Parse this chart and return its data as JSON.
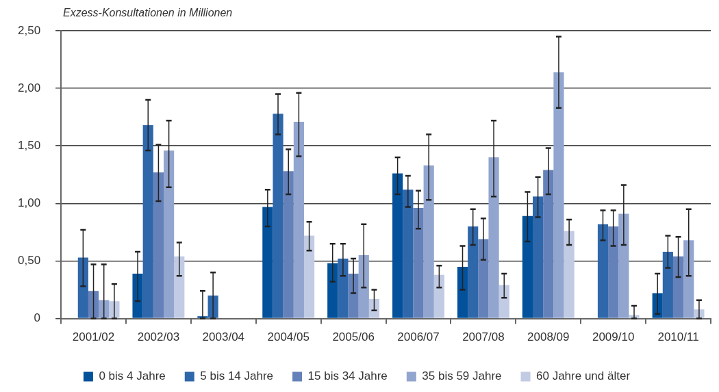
{
  "chart_data": {
    "type": "bar",
    "ylabel": "Exzess-Konsultationen in Millionen",
    "categories": [
      "2001/02",
      "2002/03",
      "2003/04",
      "2004/05",
      "2005/06",
      "2006/07",
      "2007/08",
      "2008/09",
      "2009/10",
      "2010/11"
    ],
    "series": [
      {
        "name": "0 bis 4 Jahre",
        "color": "#03519b",
        "values": [
          null,
          0.39,
          0.02,
          0.97,
          0.48,
          1.26,
          0.45,
          0.89,
          null,
          0.22
        ],
        "errors": [
          null,
          [
            0.15,
            0.58
          ],
          [
            0,
            0.24
          ],
          [
            0.8,
            1.12
          ],
          [
            0.32,
            0.65
          ],
          [
            1.08,
            1.4
          ],
          [
            0.25,
            0.63
          ],
          [
            0.67,
            1.1
          ],
          null,
          [
            0.04,
            0.39
          ]
        ]
      },
      {
        "name": "5 bis 14 Jahre",
        "color": "#2f67ab",
        "values": [
          0.53,
          1.68,
          0.2,
          1.78,
          0.52,
          1.12,
          0.8,
          1.06,
          0.82,
          0.58
        ],
        "errors": [
          [
            0.28,
            0.77
          ],
          [
            1.46,
            1.9
          ],
          [
            0,
            0.4
          ],
          [
            1.6,
            1.95
          ],
          [
            0.37,
            0.65
          ],
          [
            0.97,
            1.24
          ],
          [
            0.64,
            0.95
          ],
          [
            0.88,
            1.23
          ],
          [
            0.68,
            0.94
          ],
          [
            0.44,
            0.72
          ]
        ]
      },
      {
        "name": "15 bis 34 Jahre",
        "color": "#6581b9",
        "values": [
          0.24,
          1.27,
          null,
          1.28,
          0.39,
          0.96,
          0.69,
          1.29,
          0.8,
          0.54
        ],
        "errors": [
          [
            0,
            0.47
          ],
          [
            1.02,
            1.51
          ],
          null,
          [
            1.08,
            1.47
          ],
          [
            0.22,
            0.52
          ],
          [
            0.78,
            1.11
          ],
          [
            0.51,
            0.87
          ],
          [
            1.08,
            1.48
          ],
          [
            0.63,
            0.94
          ],
          [
            0.36,
            0.71
          ]
        ]
      },
      {
        "name": "35 bis 59 Jahre",
        "color": "#91a5cf",
        "values": [
          0.16,
          1.46,
          null,
          1.71,
          0.55,
          1.33,
          1.4,
          2.14,
          0.91,
          0.68
        ],
        "errors": [
          [
            0,
            0.47
          ],
          [
            1.14,
            1.72
          ],
          null,
          [
            1.41,
            1.96
          ],
          [
            0.27,
            0.82
          ],
          [
            1.03,
            1.6
          ],
          [
            1.06,
            1.72
          ],
          [
            1.83,
            2.45
          ],
          [
            0.64,
            1.16
          ],
          [
            0.37,
            0.95
          ]
        ]
      },
      {
        "name": "60 Jahre und älter",
        "color": "#c2cbe4",
        "values": [
          0.15,
          0.54,
          null,
          0.72,
          0.17,
          0.38,
          0.29,
          0.76,
          0.03,
          0.08
        ],
        "errors": [
          [
            0,
            0.3
          ],
          [
            0.37,
            0.66
          ],
          null,
          [
            0.59,
            0.84
          ],
          [
            0.07,
            0.25
          ],
          [
            0.27,
            0.46
          ],
          [
            0.18,
            0.39
          ],
          [
            0.64,
            0.86
          ],
          [
            0,
            0.11
          ],
          [
            0,
            0.16
          ]
        ]
      }
    ],
    "ylim": [
      0,
      2.5
    ],
    "yticks": [
      {
        "value": 0,
        "label": "0"
      },
      {
        "value": 0.5,
        "label": "0,50"
      },
      {
        "value": 1,
        "label": "1,00"
      },
      {
        "value": 1.5,
        "label": "1,50"
      },
      {
        "value": 2,
        "label": "2,00"
      },
      {
        "value": 2.5,
        "label": "2,50"
      }
    ],
    "grid": "y",
    "legend": "bottom"
  }
}
